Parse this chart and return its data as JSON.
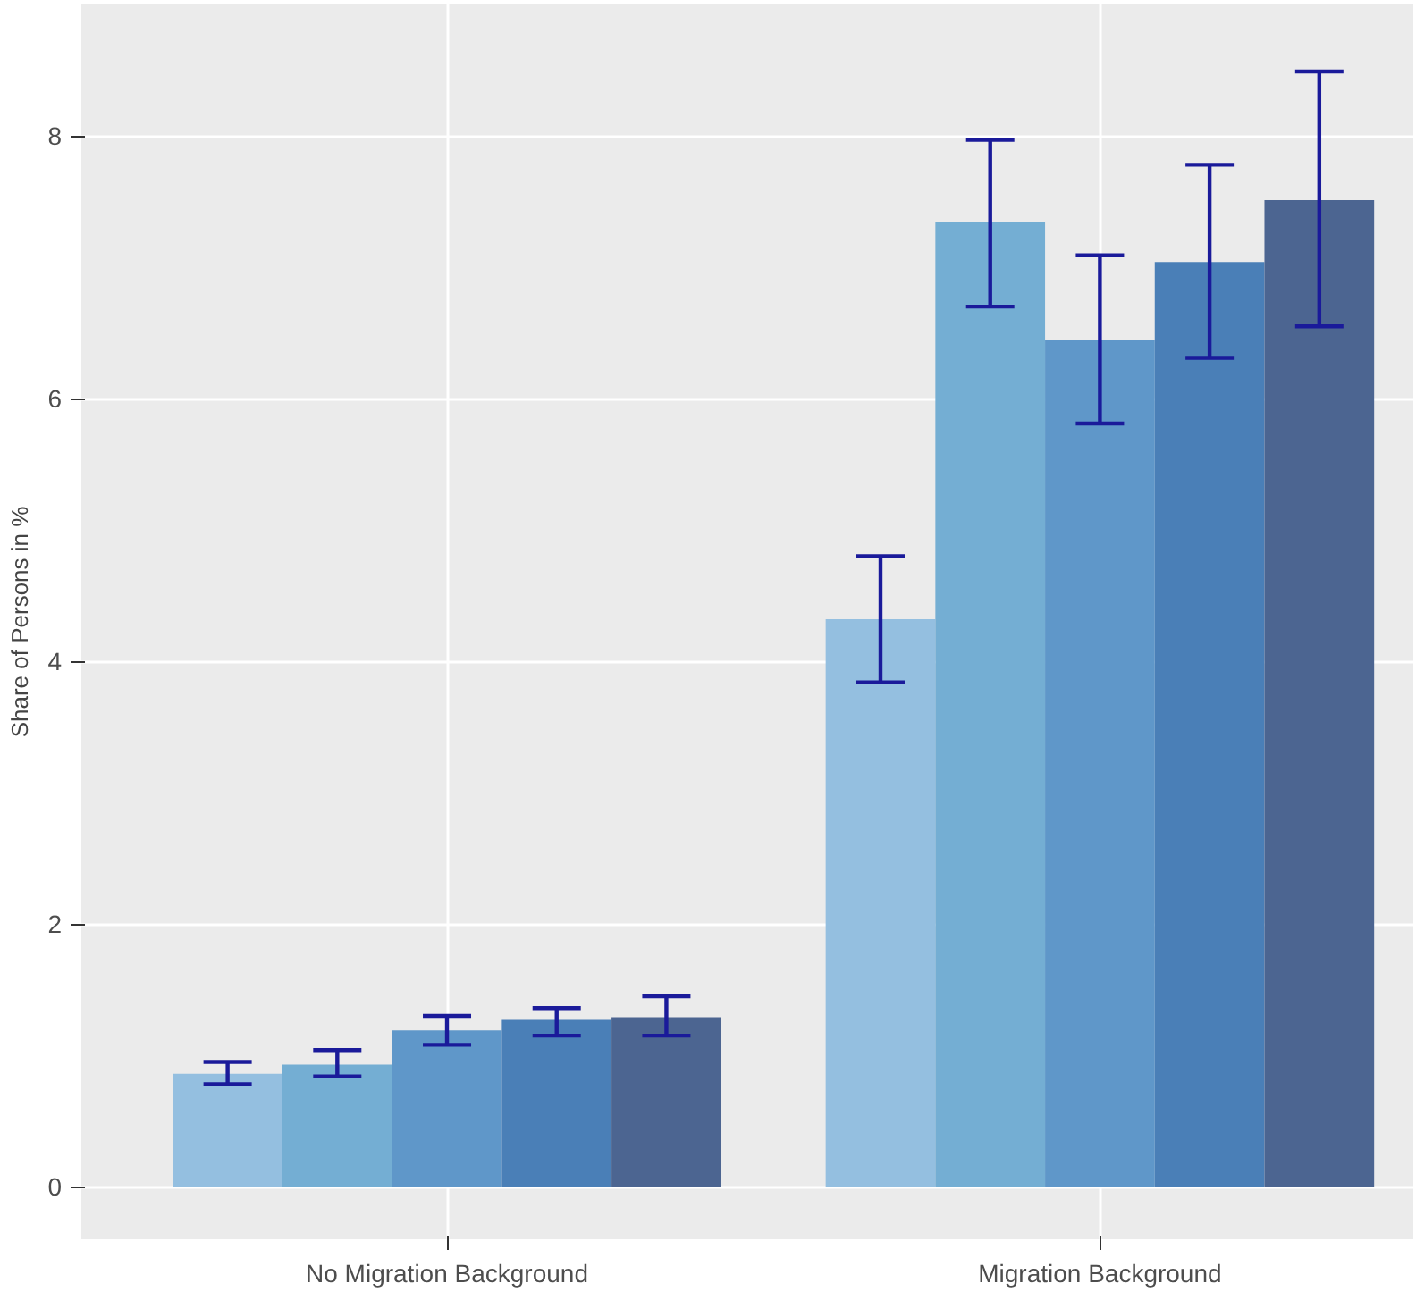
{
  "chart_data": {
    "type": "bar",
    "ylabel": "Share of Persons in %",
    "categories": [
      "No Migration Background",
      "Migration Background"
    ],
    "series": [
      {
        "color": "#94bfe0",
        "values": [
          0.86,
          4.32
        ],
        "errors": [
          [
            0.78,
            0.95
          ],
          [
            3.84,
            4.8
          ]
        ]
      },
      {
        "color": "#74aed3",
        "values": [
          0.93,
          7.34
        ],
        "errors": [
          [
            0.84,
            1.04
          ],
          [
            6.7,
            7.97
          ]
        ]
      },
      {
        "color": "#5f97c9",
        "values": [
          1.19,
          6.45
        ],
        "errors": [
          [
            1.08,
            1.3
          ],
          [
            5.81,
            7.09
          ]
        ]
      },
      {
        "color": "#4a7fb7",
        "values": [
          1.27,
          7.04
        ],
        "errors": [
          [
            1.15,
            1.36
          ],
          [
            6.31,
            7.78
          ]
        ]
      },
      {
        "color": "#4c6591",
        "values": [
          1.29,
          7.51
        ],
        "errors": [
          [
            1.15,
            1.45
          ],
          [
            6.55,
            8.49
          ]
        ]
      }
    ],
    "ylim": [
      -0.4,
      9.0
    ],
    "yticks": [
      0,
      2,
      4,
      6,
      8
    ],
    "grid": true
  }
}
